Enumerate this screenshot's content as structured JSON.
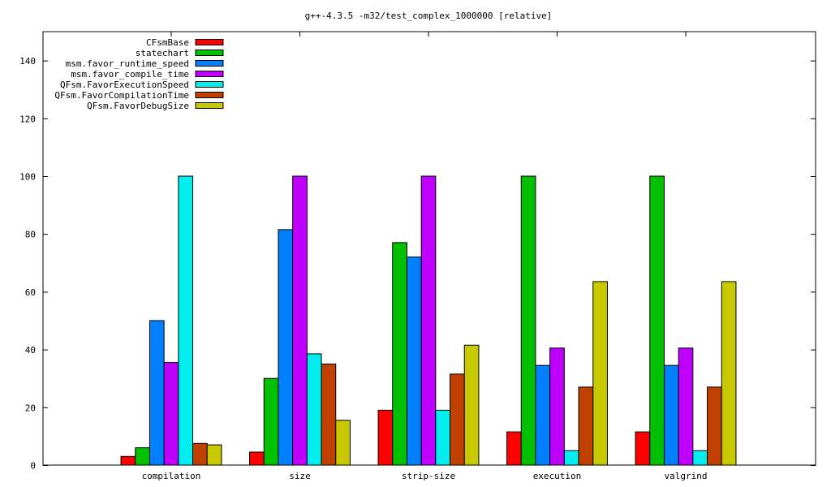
{
  "chart_data": {
    "type": "bar",
    "title": "g++-4.3.5 -m32/test_complex_1000000 [relative]",
    "xlabel": "",
    "ylabel": "",
    "ylim": [
      0,
      150
    ],
    "yticks": [
      0,
      20,
      40,
      60,
      80,
      100,
      120,
      140
    ],
    "grid": false,
    "legend_position": "top-left",
    "categories": [
      "compilation",
      "size",
      "strip-size",
      "execution",
      "valgrind"
    ],
    "series": [
      {
        "name": "CFsmBase",
        "color": "#ff0000",
        "values": [
          3,
          4.5,
          19,
          11.5,
          11.5
        ]
      },
      {
        "name": "statechart",
        "color": "#00c000",
        "values": [
          6,
          30,
          77,
          100,
          100
        ]
      },
      {
        "name": "msm.favor_runtime_speed",
        "color": "#0080ff",
        "values": [
          50,
          81.5,
          72,
          34.5,
          34.5
        ]
      },
      {
        "name": "msm.favor_compile_time",
        "color": "#c000ff",
        "values": [
          35.5,
          100,
          100,
          40.5,
          40.5
        ]
      },
      {
        "name": "QFsm.FavorExecutionSpeed",
        "color": "#00eeee",
        "values": [
          100,
          38.5,
          19,
          5,
          5
        ]
      },
      {
        "name": "QFsm.FavorCompilationTime",
        "color": "#c04000",
        "values": [
          7.5,
          35,
          31.5,
          27,
          27
        ]
      },
      {
        "name": "QFsm.FavorDebugSize",
        "color": "#c8c800",
        "values": [
          7,
          15.5,
          41.5,
          63.5,
          63.5
        ]
      }
    ]
  }
}
